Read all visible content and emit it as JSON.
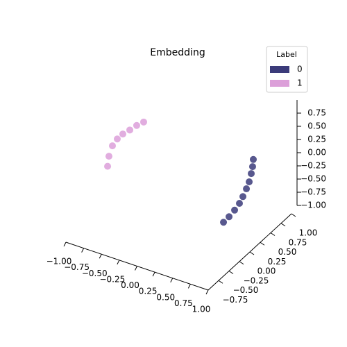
{
  "chart_data": {
    "type": "scatter3d",
    "title": "Embedding",
    "legend_title": "Label",
    "series": [
      {
        "name": "0",
        "color": "#3b3b7a",
        "x": [
          0.337,
          0.415,
          0.493,
          0.561,
          0.61,
          0.659,
          0.698,
          0.727,
          0.746,
          0.756
        ],
        "y": [
          0.5,
          0.5,
          0.5,
          0.5,
          0.5,
          0.5,
          0.5,
          0.5,
          0.5,
          0.5
        ],
        "z": [
          -1.1,
          -0.96,
          -0.8,
          -0.64,
          -0.49,
          -0.32,
          -0.17,
          0.0,
          0.14,
          0.28
        ]
      },
      {
        "name": "1",
        "color": "#dc9fd9",
        "x": [
          -0.707,
          -0.688,
          -0.639,
          -0.571,
          -0.493,
          -0.395,
          -0.298,
          -0.2
        ],
        "y": [
          -0.5,
          -0.5,
          -0.5,
          -0.5,
          -0.5,
          -0.5,
          -0.5,
          -0.5
        ],
        "z": [
          0.21,
          0.41,
          0.63,
          0.79,
          0.92,
          1.04,
          1.17,
          1.28
        ]
      }
    ],
    "xlim": [
      -1,
      1
    ],
    "ylim": [
      -1,
      1
    ],
    "zlim": [
      -1,
      1
    ],
    "xticks": [
      {
        "value": -1,
        "label": "−1.00"
      },
      {
        "value": -0.75,
        "label": "−0.75"
      },
      {
        "value": -0.5,
        "label": "−0.50"
      },
      {
        "value": -0.25,
        "label": "−0.25"
      },
      {
        "value": 0,
        "label": "0.00"
      },
      {
        "value": 0.25,
        "label": "0.25"
      },
      {
        "value": 0.5,
        "label": "0.50"
      },
      {
        "value": 0.75,
        "label": "0.75"
      },
      {
        "value": 1,
        "label": "1.00"
      }
    ],
    "yticks": [
      {
        "value": -0.75,
        "label": "−0.75"
      },
      {
        "value": -0.5,
        "label": "−0.50"
      },
      {
        "value": -0.25,
        "label": "−0.25"
      },
      {
        "value": 0,
        "label": "0.00"
      },
      {
        "value": 0.25,
        "label": "0.25"
      },
      {
        "value": 0.5,
        "label": "0.50"
      },
      {
        "value": 0.75,
        "label": "0.75"
      },
      {
        "value": 1,
        "label": "1.00"
      }
    ],
    "zticks": [
      {
        "value": -1,
        "label": "−1.00"
      },
      {
        "value": -0.75,
        "label": "−0.75"
      },
      {
        "value": -0.5,
        "label": "−0.50"
      },
      {
        "value": -0.25,
        "label": "−0.25"
      },
      {
        "value": 0,
        "label": "0.00"
      },
      {
        "value": 0.25,
        "label": "0.25"
      },
      {
        "value": 0.5,
        "label": "0.50"
      },
      {
        "value": 0.75,
        "label": "0.75"
      }
    ]
  }
}
